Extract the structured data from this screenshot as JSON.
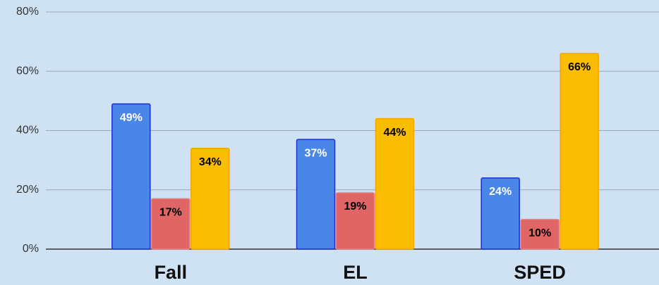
{
  "chart_data": {
    "type": "bar",
    "categories": [
      "Fall",
      "EL",
      "SPED"
    ],
    "series": [
      {
        "color": "#4a86e8",
        "stroke": "#1c2fd6",
        "label_color": "#ffffff",
        "values": [
          49,
          37,
          24
        ],
        "value_labels": [
          "49%",
          "37%",
          "24%"
        ]
      },
      {
        "color": "#e06666",
        "stroke": "#e57e7e",
        "label_color": "#000000",
        "values": [
          17,
          19,
          10
        ],
        "value_labels": [
          "17%",
          "19%",
          "10%"
        ]
      },
      {
        "color": "#fbbc04",
        "stroke": "#f2a600",
        "label_color": "#000000",
        "values": [
          34,
          44,
          66
        ],
        "value_labels": [
          "34%",
          "44%",
          "66%"
        ]
      }
    ],
    "ylim": [
      0,
      80
    ],
    "yticks": [
      {
        "value": 0,
        "label": "0%"
      },
      {
        "value": 20,
        "label": "20%"
      },
      {
        "value": 40,
        "label": "40%"
      },
      {
        "value": 60,
        "label": "60%"
      },
      {
        "value": 80,
        "label": "80%"
      }
    ],
    "grid": true
  }
}
